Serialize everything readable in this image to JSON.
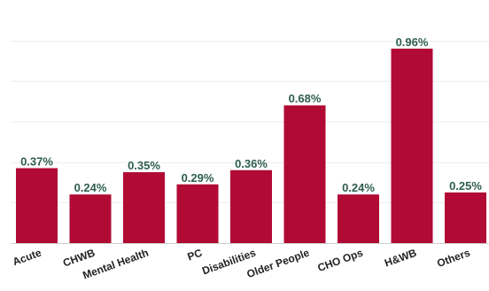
{
  "chart_data": {
    "type": "bar",
    "categories": [
      "Acute",
      "CHWB",
      "Mental Health",
      "PC",
      "Disabilities",
      "Older People",
      "CHO Ops",
      "H&WB",
      "Others"
    ],
    "values": [
      0.37,
      0.24,
      0.35,
      0.29,
      0.36,
      0.68,
      0.24,
      0.96,
      0.25
    ],
    "data_labels": [
      "0.37%",
      "0.24%",
      "0.35%",
      "0.29%",
      "0.36%",
      "0.68%",
      "0.24%",
      "0.96%",
      "0.25%"
    ],
    "title": "",
    "xlabel": "",
    "ylabel": "",
    "ylim": [
      0,
      1.2
    ],
    "grid": true,
    "legend": "none",
    "colors": {
      "bar": "#b10a35",
      "data_label": "#2e5d4f",
      "tick_label": "#222222",
      "grid": "#ededed"
    }
  }
}
